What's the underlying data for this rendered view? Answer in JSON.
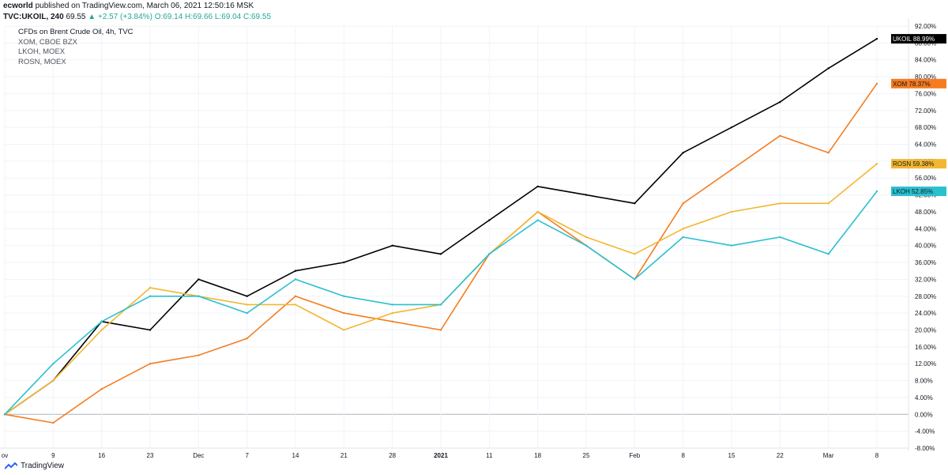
{
  "header": {
    "line1_user": "ecworld",
    "line1_rest": " published on TradingView.com, March 06, 2021 12:50:16 MSK",
    "symbol": "TVC:UKOIL, 240",
    "price": "69.55",
    "change": "+2.57 (+3.84%)",
    "ohlc": "O:69.14 H:69.66 L:69.04 C:69.55"
  },
  "overlays": [
    "CFDs on Brent Crude Oil, 4h, TVC",
    "XOM, CBOE BZX",
    "LKOH, MOEX",
    "ROSN, MOEX"
  ],
  "footer": {
    "brand": "TradingView"
  },
  "colors": {
    "UKOIL": "#000000",
    "XOM": "#f57c1f",
    "ROSN": "#f2b731",
    "LKOH": "#2bc0cf",
    "grid": "#f0f3fa",
    "axis": "#131722"
  },
  "chart_data": {
    "type": "line",
    "title": "CFDs on Brent Crude Oil, 4h, TVC",
    "y_unit": "%",
    "ylim": [
      -8,
      92
    ],
    "y_ticks": [
      "92.00%",
      "88.00%",
      "84.00%",
      "80.00%",
      "76.00%",
      "72.00%",
      "68.00%",
      "64.00%",
      "60.00%",
      "56.00%",
      "52.00%",
      "48.00%",
      "44.00%",
      "40.00%",
      "36.00%",
      "32.00%",
      "28.00%",
      "24.00%",
      "20.00%",
      "16.00%",
      "12.00%",
      "8.00%",
      "4.00%",
      "0.00%",
      "-4.00%",
      "-8.00%"
    ],
    "x_ticks": [
      "ov",
      "9",
      "16",
      "23",
      "Dec",
      "7",
      "14",
      "21",
      "28",
      "2021",
      "11",
      "18",
      "25",
      "Feb",
      "8",
      "15",
      "22",
      "Mar",
      "8"
    ],
    "x": [
      "ov",
      "9",
      "16",
      "23",
      "Dec",
      "7",
      "14",
      "21",
      "28",
      "2021",
      "11",
      "18",
      "25",
      "Feb",
      "8",
      "15",
      "22",
      "Mar",
      "8"
    ],
    "series": [
      {
        "name": "UKOIL",
        "last_label": "88.99%",
        "values": [
          0,
          8,
          22,
          20,
          32,
          28,
          34,
          36,
          40,
          38,
          46,
          54,
          52,
          50,
          62,
          68,
          74,
          82,
          88.99
        ]
      },
      {
        "name": "XOM",
        "last_label": "78.37%",
        "values": [
          0,
          -2,
          6,
          12,
          14,
          18,
          28,
          24,
          22,
          20,
          38,
          48,
          40,
          32,
          50,
          58,
          66,
          62,
          78.37
        ]
      },
      {
        "name": "ROSN",
        "last_label": "59.38%",
        "values": [
          0,
          8,
          20,
          30,
          28,
          26,
          26,
          20,
          24,
          26,
          38,
          48,
          42,
          38,
          44,
          48,
          50,
          50,
          59.38
        ]
      },
      {
        "name": "LKOH",
        "last_label": "52.85%",
        "values": [
          0,
          12,
          22,
          28,
          28,
          24,
          32,
          28,
          26,
          26,
          38,
          46,
          40,
          32,
          42,
          40,
          42,
          38,
          52.85
        ]
      }
    ],
    "grid": true,
    "legend": "right-edge price labels"
  }
}
